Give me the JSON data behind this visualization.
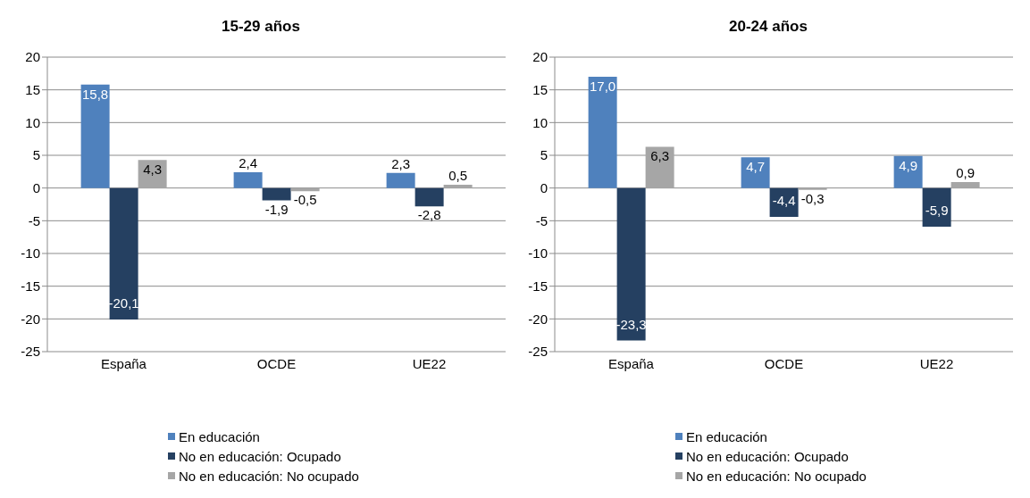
{
  "chart_data": [
    {
      "type": "bar",
      "title": "15-29 años",
      "categories": [
        "España",
        "OCDE",
        "UE22"
      ],
      "series": [
        {
          "name": "En educación",
          "color": "#4f81bd",
          "values": [
            15.8,
            2.4,
            2.3
          ],
          "value_labels": [
            "15,8",
            "2,4",
            "2,3"
          ]
        },
        {
          "name": "No en educación: Ocupado",
          "color": "#254061",
          "values": [
            -20.1,
            -1.9,
            -2.8
          ],
          "value_labels": [
            "-20,1",
            "-1,9",
            "-2,8"
          ]
        },
        {
          "name": "No en educación: No ocupado",
          "color": "#a6a6a6",
          "values": [
            4.3,
            -0.5,
            0.5
          ],
          "value_labels": [
            "4,3",
            "-0,5",
            "0,5"
          ]
        }
      ],
      "ylim": [
        -25,
        20
      ],
      "yticks": [
        -25,
        -20,
        -15,
        -10,
        -5,
        0,
        5,
        10,
        15,
        20
      ],
      "grid": "y",
      "legend": "bottom"
    },
    {
      "type": "bar",
      "title": "20-24 años",
      "categories": [
        "España",
        "OCDE",
        "UE22"
      ],
      "series": [
        {
          "name": "En educación",
          "color": "#4f81bd",
          "values": [
            17.0,
            4.7,
            4.9
          ],
          "value_labels": [
            "17,0",
            "4,7",
            "4,9"
          ]
        },
        {
          "name": "No en educación: Ocupado",
          "color": "#254061",
          "values": [
            -23.3,
            -4.4,
            -5.9
          ],
          "value_labels": [
            "-23,3",
            "-4,4",
            "-5,9"
          ]
        },
        {
          "name": "No en educación: No ocupado",
          "color": "#a6a6a6",
          "values": [
            6.3,
            -0.3,
            0.9
          ],
          "value_labels": [
            "6,3",
            "-0,3",
            "0,9"
          ]
        }
      ],
      "ylim": [
        -25,
        20
      ],
      "yticks": [
        -25,
        -20,
        -15,
        -10,
        -5,
        0,
        5,
        10,
        15,
        20
      ],
      "grid": "y",
      "legend": "bottom"
    }
  ]
}
